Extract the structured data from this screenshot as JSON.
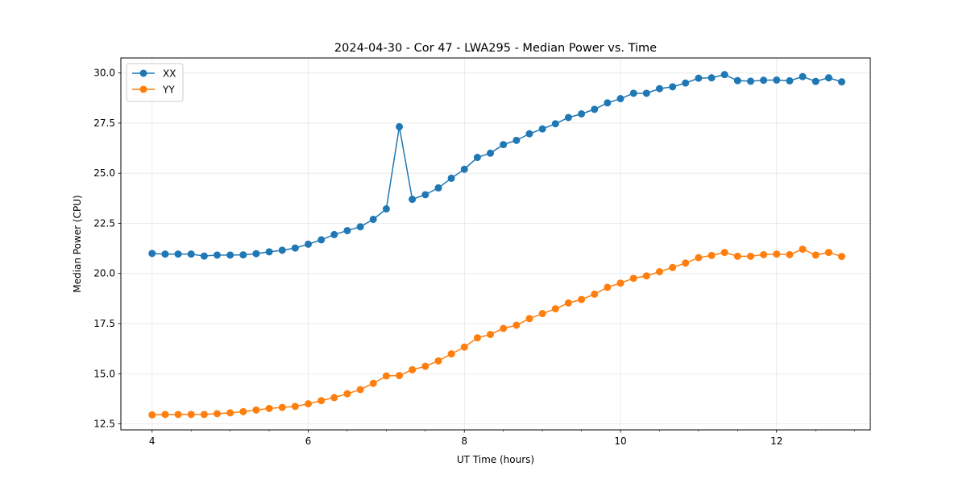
{
  "chart_data": {
    "type": "line",
    "title": "2024-04-30 - Cor 47 - LWA295 - Median Power vs. Time",
    "xlabel": "UT Time (hours)",
    "ylabel": "Median Power (CPU)",
    "xlim": [
      3.6,
      13.2
    ],
    "ylim": [
      12.2,
      30.75
    ],
    "xticks": [
      4,
      6,
      8,
      10,
      12
    ],
    "xtick_labels": [
      "4",
      "6",
      "8",
      "10",
      "12"
    ],
    "yticks": [
      12.5,
      15.0,
      17.5,
      20.0,
      22.5,
      25.0,
      27.5,
      30.0
    ],
    "ytick_labels": [
      "12.5",
      "15.0",
      "17.5",
      "20.0",
      "22.5",
      "25.0",
      "27.5",
      "30.0"
    ],
    "grid": true,
    "legend_position": "top-left",
    "x": [
      4.0,
      4.167,
      4.333,
      4.5,
      4.667,
      4.833,
      5.0,
      5.167,
      5.333,
      5.5,
      5.667,
      5.833,
      6.0,
      6.167,
      6.333,
      6.5,
      6.667,
      6.833,
      7.0,
      7.167,
      7.333,
      7.5,
      7.667,
      7.833,
      8.0,
      8.167,
      8.333,
      8.5,
      8.667,
      8.833,
      9.0,
      9.167,
      9.333,
      9.5,
      9.667,
      9.833,
      10.0,
      10.167,
      10.333,
      10.5,
      10.667,
      10.833,
      11.0,
      11.167,
      11.333,
      11.5,
      11.667,
      11.833,
      12.0,
      12.167,
      12.333,
      12.5,
      12.667,
      12.833
    ],
    "series": [
      {
        "name": "XX",
        "color": "#1f77b4",
        "values": [
          21.0,
          20.97,
          20.97,
          20.97,
          20.87,
          20.92,
          20.92,
          20.93,
          20.99,
          21.08,
          21.16,
          21.27,
          21.46,
          21.68,
          21.94,
          22.14,
          22.33,
          22.7,
          23.22,
          27.32,
          23.7,
          23.93,
          24.27,
          24.75,
          25.2,
          25.79,
          26.0,
          26.43,
          26.64,
          26.97,
          27.21,
          27.47,
          27.78,
          27.96,
          28.19,
          28.51,
          28.72,
          28.99,
          28.99,
          29.22,
          29.31,
          29.5,
          29.74,
          29.76,
          29.92,
          29.62,
          29.59,
          29.64,
          29.65,
          29.61,
          29.82,
          29.58,
          29.76,
          29.56
        ]
      },
      {
        "name": "YY",
        "color": "#ff7f0e",
        "values": [
          12.95,
          12.97,
          12.97,
          12.97,
          12.97,
          13.01,
          13.05,
          13.11,
          13.19,
          13.27,
          13.32,
          13.37,
          13.5,
          13.66,
          13.81,
          14.0,
          14.21,
          14.52,
          14.89,
          14.91,
          15.2,
          15.37,
          15.64,
          15.99,
          16.33,
          16.79,
          16.96,
          17.26,
          17.42,
          17.75,
          18.0,
          18.24,
          18.53,
          18.7,
          18.97,
          19.31,
          19.52,
          19.76,
          19.88,
          20.09,
          20.3,
          20.52,
          20.79,
          20.9,
          21.05,
          20.86,
          20.86,
          20.94,
          20.97,
          20.94,
          21.21,
          20.92,
          21.05,
          20.85
        ]
      }
    ]
  }
}
